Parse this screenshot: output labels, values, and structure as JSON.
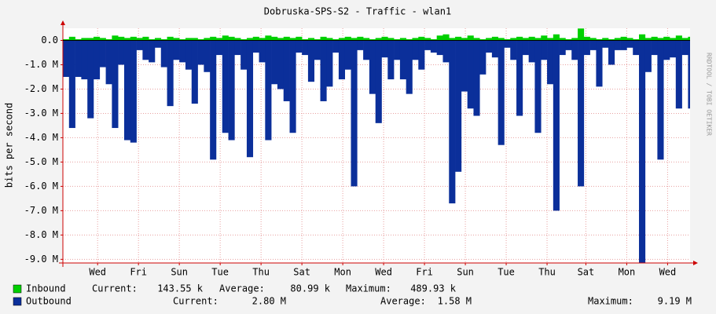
{
  "chart_data": {
    "type": "rrd-area",
    "title": "Dobruska-SPS-S2 - Traffic - wlan1",
    "ylabel": "bits per second",
    "watermark": "RRDTOOL / TOBI OETIKER",
    "xlim": [
      0,
      30.7
    ],
    "xticks": [
      {
        "value": 1.7,
        "label": "Wed"
      },
      {
        "value": 3.7,
        "label": "Fri"
      },
      {
        "value": 5.7,
        "label": "Sun"
      },
      {
        "value": 7.7,
        "label": "Tue"
      },
      {
        "value": 9.7,
        "label": "Thu"
      },
      {
        "value": 11.7,
        "label": "Sat"
      },
      {
        "value": 13.7,
        "label": "Mon"
      },
      {
        "value": 15.7,
        "label": "Wed"
      },
      {
        "value": 17.7,
        "label": "Fri"
      },
      {
        "value": 19.7,
        "label": "Sun"
      },
      {
        "value": 21.7,
        "label": "Tue"
      },
      {
        "value": 23.7,
        "label": "Thu"
      },
      {
        "value": 25.6,
        "label": "Sat"
      },
      {
        "value": 27.6,
        "label": "Mon"
      },
      {
        "value": 29.6,
        "label": "Wed"
      }
    ],
    "ylim": [
      -9.15,
      0.5
    ],
    "yticks": [
      {
        "value": 0,
        "label": "0.0"
      },
      {
        "value": -1,
        "label": "-1.0 M"
      },
      {
        "value": -2,
        "label": "-2.0 M"
      },
      {
        "value": -3,
        "label": "-3.0 M"
      },
      {
        "value": -4,
        "label": "-4.0 M"
      },
      {
        "value": -5,
        "label": "-5.0 M"
      },
      {
        "value": -6,
        "label": "-6.0 M"
      },
      {
        "value": -7,
        "label": "-7.0 M"
      },
      {
        "value": -8,
        "label": "-8.0 M"
      },
      {
        "value": -9,
        "label": "-9.0 M"
      }
    ],
    "grid": true,
    "x": [
      0,
      0.3,
      0.6,
      0.9,
      1.2,
      1.5,
      1.8,
      2.1,
      2.4,
      2.7,
      3,
      3.3,
      3.6,
      3.9,
      4.2,
      4.5,
      4.8,
      5.1,
      5.4,
      5.7,
      6,
      6.3,
      6.6,
      6.9,
      7.2,
      7.5,
      7.8,
      8.1,
      8.4,
      8.7,
      9,
      9.3,
      9.6,
      9.9,
      10.2,
      10.5,
      10.8,
      11.1,
      11.4,
      11.7,
      12,
      12.3,
      12.6,
      12.9,
      13.2,
      13.5,
      13.8,
      14.1,
      14.4,
      14.7,
      15,
      15.3,
      15.6,
      15.9,
      16.2,
      16.5,
      16.8,
      17.1,
      17.4,
      17.7,
      18,
      18.3,
      18.6,
      18.9,
      19.2,
      19.5,
      19.8,
      20.1,
      20.4,
      20.7,
      21,
      21.3,
      21.6,
      21.9,
      22.2,
      22.5,
      22.8,
      23.1,
      23.4,
      23.7,
      24,
      24.3,
      24.6,
      24.9,
      25.2,
      25.5,
      25.8,
      26.1,
      26.4,
      26.7,
      27,
      27.3,
      27.6,
      27.9,
      28.2,
      28.5,
      28.8,
      29.1,
      29.4,
      29.7,
      30,
      30.3,
      30.6
    ],
    "series": [
      {
        "name": "Outbound",
        "color": "#0b2f9a",
        "stats": [
          {
            "label": "Current:",
            "value": "2.80 M"
          },
          {
            "label": "Average:",
            "value": "1.58 M"
          },
          {
            "label": "Maximum:",
            "value": "9.19 M"
          }
        ],
        "values": [
          -1.5,
          -3.6,
          -1.5,
          -1.6,
          -3.2,
          -1.6,
          -1.1,
          -1.8,
          -3.6,
          -1.0,
          -4.1,
          -4.2,
          -0.4,
          -0.8,
          -0.9,
          -0.3,
          -1.1,
          -2.7,
          -0.8,
          -0.9,
          -1.2,
          -2.6,
          -1.0,
          -1.3,
          -4.9,
          -0.6,
          -3.8,
          -4.1,
          -0.6,
          -1.2,
          -4.8,
          -0.5,
          -0.9,
          -4.1,
          -1.8,
          -2.0,
          -2.5,
          -3.8,
          -0.5,
          -0.6,
          -1.7,
          -0.8,
          -2.5,
          -1.9,
          -0.5,
          -1.6,
          -1.2,
          -6.0,
          -0.4,
          -0.8,
          -2.2,
          -3.4,
          -0.7,
          -1.6,
          -0.8,
          -1.6,
          -2.2,
          -0.8,
          -1.2,
          -0.4,
          -0.5,
          -0.6,
          -0.9,
          -6.7,
          -5.4,
          -2.1,
          -2.8,
          -3.1,
          -1.4,
          -0.5,
          -0.7,
          -4.3,
          -0.3,
          -0.8,
          -3.1,
          -0.6,
          -0.9,
          -3.8,
          -0.8,
          -1.8,
          -7.0,
          -0.6,
          -0.4,
          -0.8,
          -6.0,
          -0.6,
          -0.4,
          -1.9,
          -0.3,
          -1.0,
          -0.4,
          -0.4,
          -0.3,
          -0.6,
          -9.19,
          -1.3,
          -0.6,
          -4.9,
          -0.8,
          -0.7,
          -2.8,
          -0.6,
          -2.8
        ]
      },
      {
        "name": "Inbound",
        "color": "#00d000",
        "stats": [
          {
            "label": "Current:",
            "value": "143.55 k"
          },
          {
            "label": "Average:",
            "value": "80.99 k"
          },
          {
            "label": "Maximum:",
            "value": "489.93 k"
          }
        ],
        "values": [
          0.05,
          0.15,
          0.05,
          0.1,
          0.1,
          0.15,
          0.1,
          0.05,
          0.2,
          0.15,
          0.1,
          0.15,
          0.1,
          0.15,
          0.05,
          0.1,
          0.05,
          0.15,
          0.1,
          0.05,
          0.1,
          0.1,
          0.05,
          0.1,
          0.15,
          0.1,
          0.2,
          0.15,
          0.1,
          0.05,
          0.1,
          0.15,
          0.1,
          0.2,
          0.15,
          0.1,
          0.15,
          0.1,
          0.15,
          0.05,
          0.1,
          0.05,
          0.15,
          0.1,
          0.05,
          0.1,
          0.15,
          0.1,
          0.15,
          0.1,
          0.05,
          0.1,
          0.15,
          0.1,
          0.05,
          0.1,
          0.05,
          0.1,
          0.15,
          0.1,
          0.05,
          0.2,
          0.25,
          0.1,
          0.15,
          0.1,
          0.2,
          0.1,
          0.05,
          0.1,
          0.15,
          0.1,
          0.05,
          0.1,
          0.15,
          0.1,
          0.15,
          0.1,
          0.2,
          0.1,
          0.25,
          0.1,
          0.05,
          0.1,
          0.49,
          0.15,
          0.1,
          0.05,
          0.1,
          0.05,
          0.1,
          0.15,
          0.1,
          0.05,
          0.25,
          0.1,
          0.15,
          0.1,
          0.15,
          0.1,
          0.2,
          0.1,
          0.15
        ]
      }
    ]
  }
}
